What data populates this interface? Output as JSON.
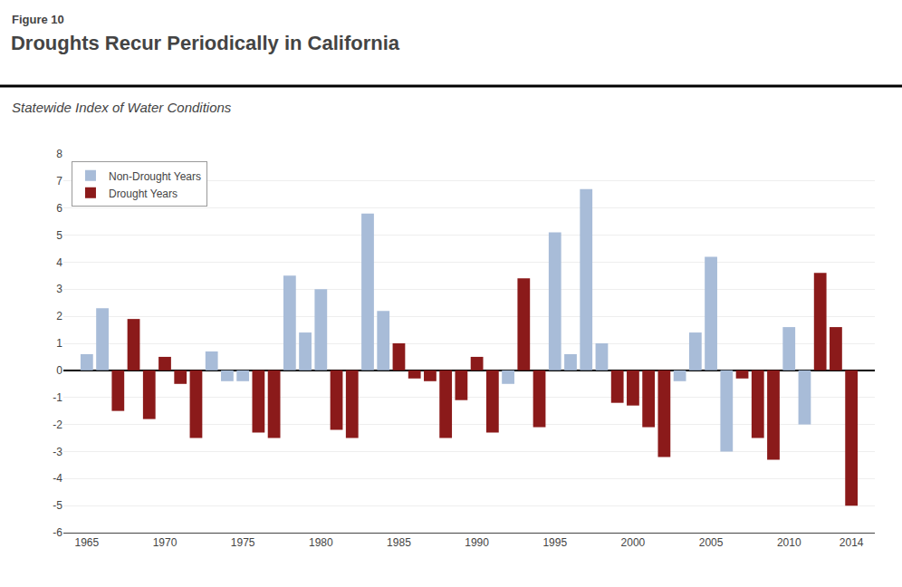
{
  "chart_data": {
    "type": "bar",
    "title": "Droughts Recur Periodically in California",
    "subtitle": "Statewide Index of Water Conditions",
    "annotations": [
      "Figure 10"
    ],
    "x": [
      1965,
      1966,
      1967,
      1968,
      1969,
      1970,
      1971,
      1972,
      1973,
      1974,
      1975,
      1976,
      1977,
      1978,
      1979,
      1980,
      1981,
      1982,
      1983,
      1984,
      1985,
      1986,
      1987,
      1988,
      1989,
      1990,
      1991,
      1992,
      1993,
      1994,
      1995,
      1996,
      1997,
      1998,
      1999,
      2000,
      2001,
      2002,
      2003,
      2004,
      2005,
      2006,
      2007,
      2008,
      2009,
      2010,
      2011,
      2012,
      2013,
      2014
    ],
    "series": [
      {
        "name": "Non-Drought Years",
        "color": "#a8bcd8",
        "values": [
          0.6,
          2.3,
          null,
          null,
          null,
          null,
          null,
          null,
          0.7,
          -0.4,
          -0.4,
          null,
          null,
          3.5,
          1.4,
          3.0,
          null,
          null,
          5.8,
          2.2,
          null,
          null,
          null,
          null,
          null,
          null,
          null,
          -0.5,
          null,
          null,
          5.1,
          0.6,
          6.7,
          1.0,
          null,
          null,
          null,
          null,
          -0.4,
          1.4,
          4.2,
          -3.0,
          null,
          null,
          null,
          1.6,
          -2.0,
          null,
          null,
          null
        ]
      },
      {
        "name": "Drought Years",
        "color": "#8b1a1a",
        "values": [
          null,
          null,
          -1.5,
          1.9,
          -1.8,
          0.5,
          -0.5,
          -2.5,
          null,
          null,
          null,
          -2.3,
          -2.5,
          null,
          null,
          null,
          -2.2,
          -2.5,
          null,
          null,
          1.0,
          -0.3,
          -0.4,
          -2.5,
          -1.1,
          0.5,
          -2.3,
          null,
          3.4,
          -2.1,
          null,
          null,
          null,
          null,
          -1.2,
          -1.3,
          -2.1,
          -3.2,
          null,
          null,
          null,
          null,
          -0.3,
          -2.5,
          -3.3,
          null,
          null,
          3.6,
          1.6,
          -5.0
        ]
      }
    ],
    "xlim": [
      1963.5,
      2015.5
    ],
    "xticks": [
      1965,
      1970,
      1975,
      1980,
      1985,
      1990,
      1995,
      2000,
      2005,
      2010,
      2014
    ],
    "ylim": [
      -6,
      8
    ],
    "yticks": [
      -6,
      -5,
      -4,
      -3,
      -2,
      -1,
      0,
      1,
      2,
      3,
      4,
      5,
      6,
      7,
      8
    ],
    "grid": true,
    "legend": "upper left"
  }
}
